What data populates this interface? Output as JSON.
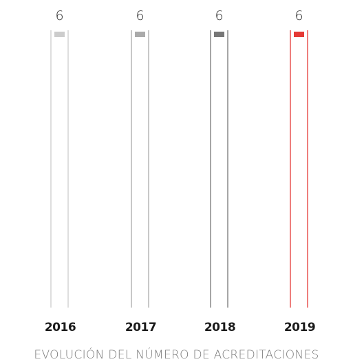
{
  "chart_data": {
    "type": "bar",
    "title": "EVOLUCIÓN DEL NÚMERO DE ACREDITACIONES",
    "categories": [
      "2016",
      "2017",
      "2018",
      "2019"
    ],
    "values": [
      6,
      6,
      6,
      6
    ],
    "value_labels": [
      "6",
      "6",
      "6",
      "6"
    ],
    "colors": [
      "#cccccc",
      "#aaaaaa",
      "#777777",
      "#e53935"
    ],
    "ylim": [
      0,
      6
    ],
    "grid": false,
    "legend": "none"
  }
}
